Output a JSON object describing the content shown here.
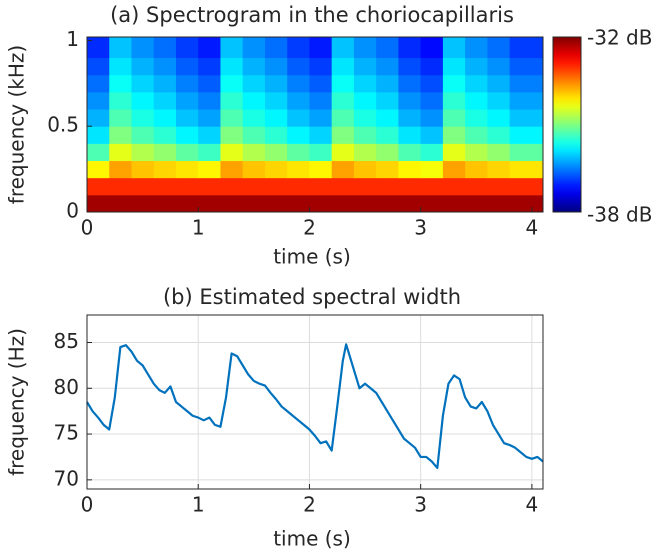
{
  "chart_data": [
    {
      "type": "heatmap",
      "title": "(a) Spectrogram in the choriocapillaris",
      "xlabel": "time (s)",
      "ylabel": "frequency (kHz)",
      "colormap": "jet",
      "x": [
        0.1,
        0.3,
        0.5,
        0.7,
        0.9,
        1.1,
        1.3,
        1.5,
        1.7,
        1.9,
        2.1,
        2.3,
        2.5,
        2.7,
        2.9,
        3.1,
        3.3,
        3.5,
        3.7,
        3.9
      ],
      "y": [
        0.05,
        0.15,
        0.25,
        0.35,
        0.45,
        0.55,
        0.65,
        0.75,
        0.85,
        0.95
      ],
      "z": [
        [
          -32.2,
          -32.2,
          -32.2,
          -32.2,
          -32.2,
          -32.2,
          -32.2,
          -32.2,
          -32.2,
          -32.2,
          -32.2,
          -32.2,
          -32.2,
          -32.2,
          -32.2,
          -32.2,
          -32.2,
          -32.2,
          -32.2,
          -32.2
        ],
        [
          -33,
          -33,
          -33,
          -33,
          -33,
          -33,
          -33,
          -33,
          -33,
          -33,
          -33,
          -33,
          -33,
          -33,
          -33,
          -33,
          -33,
          -33,
          -33,
          -33
        ],
        [
          -34.2,
          -33.7,
          -33.9,
          -34,
          -34.1,
          -34.2,
          -33.7,
          -33.9,
          -34,
          -34.1,
          -34.2,
          -33.7,
          -33.9,
          -34,
          -34.2,
          -34.3,
          -33.7,
          -33.9,
          -34,
          -34.1
        ],
        [
          -35.3,
          -34.4,
          -34.7,
          -34.9,
          -35.2,
          -35.4,
          -34.4,
          -34.7,
          -34.9,
          -35.2,
          -35.4,
          -34.4,
          -34.7,
          -34.9,
          -35.3,
          -35.5,
          -34.4,
          -34.7,
          -34.9,
          -35.2
        ],
        [
          -35.9,
          -35,
          -35.3,
          -35.5,
          -35.8,
          -36,
          -35,
          -35.3,
          -35.5,
          -35.8,
          -36,
          -35,
          -35.3,
          -35.5,
          -35.9,
          -36.1,
          -35,
          -35.3,
          -35.5,
          -35.8
        ],
        [
          -36.2,
          -35.3,
          -35.6,
          -35.8,
          -36.1,
          -36.3,
          -35.3,
          -35.6,
          -35.8,
          -36.1,
          -36.3,
          -35.3,
          -35.6,
          -35.8,
          -36.2,
          -36.4,
          -35.3,
          -35.6,
          -35.8,
          -36.1
        ],
        [
          -36.4,
          -35.5,
          -35.8,
          -36,
          -36.3,
          -36.5,
          -35.5,
          -35.8,
          -36,
          -36.3,
          -36.5,
          -35.5,
          -35.8,
          -36,
          -36.4,
          -36.6,
          -35.5,
          -35.8,
          -36,
          -36.3
        ],
        [
          -36.6,
          -35.7,
          -36,
          -36.2,
          -36.5,
          -36.7,
          -35.7,
          -36,
          -36.2,
          -36.5,
          -36.7,
          -35.7,
          -36,
          -36.2,
          -36.6,
          -36.8,
          -35.7,
          -36,
          -36.2,
          -36.5
        ],
        [
          -36.8,
          -35.9,
          -36.2,
          -36.4,
          -36.7,
          -36.9,
          -35.9,
          -36.2,
          -36.4,
          -36.7,
          -36.9,
          -35.9,
          -36.2,
          -36.4,
          -36.8,
          -37,
          -35.9,
          -36.2,
          -36.4,
          -36.7
        ],
        [
          -37,
          -36.1,
          -36.4,
          -36.6,
          -36.9,
          -37.1,
          -36.1,
          -36.4,
          -36.6,
          -36.9,
          -37.1,
          -36.1,
          -36.4,
          -36.6,
          -37,
          -37.2,
          -36.1,
          -36.4,
          -36.6,
          -36.9
        ]
      ],
      "xlim": [
        0,
        4.1
      ],
      "ylim": [
        0,
        1.02
      ],
      "xticks": [
        0,
        1,
        2,
        3,
        4
      ],
      "yticks": [
        0,
        0.5,
        1
      ],
      "zlim": [
        -38,
        -32
      ],
      "zticks": [
        {
          "value": -32,
          "label": "-32 dB"
        },
        {
          "value": -38,
          "label": "-38 dB"
        }
      ]
    },
    {
      "type": "line",
      "title": "(b) Estimated spectral width",
      "xlabel": "time (s)",
      "ylabel": "frequency (Hz)",
      "color": "#0072bd",
      "grid": true,
      "x": [
        0,
        0.05,
        0.1,
        0.15,
        0.2,
        0.25,
        0.3,
        0.35,
        0.4,
        0.45,
        0.5,
        0.55,
        0.6,
        0.65,
        0.7,
        0.75,
        0.8,
        0.85,
        0.9,
        0.95,
        1.0,
        1.05,
        1.1,
        1.15,
        1.2,
        1.25,
        1.3,
        1.35,
        1.4,
        1.45,
        1.5,
        1.55,
        1.6,
        1.65,
        1.7,
        1.75,
        1.8,
        1.85,
        1.9,
        1.95,
        2.0,
        2.05,
        2.1,
        2.15,
        2.2,
        2.25,
        2.3,
        2.33,
        2.4,
        2.45,
        2.5,
        2.55,
        2.6,
        2.65,
        2.7,
        2.75,
        2.8,
        2.85,
        2.9,
        2.95,
        3.0,
        3.05,
        3.1,
        3.15,
        3.2,
        3.25,
        3.3,
        3.35,
        3.4,
        3.45,
        3.5,
        3.55,
        3.6,
        3.65,
        3.7,
        3.75,
        3.8,
        3.85,
        3.9,
        3.95,
        4.0,
        4.05,
        4.1
      ],
      "values": [
        78.5,
        77.5,
        76.8,
        76,
        75.5,
        79,
        84.5,
        84.7,
        84,
        83,
        82.5,
        81.5,
        80.5,
        79.8,
        79.5,
        80.2,
        78.5,
        78,
        77.5,
        77,
        76.8,
        76.5,
        76.8,
        76,
        75.8,
        79,
        83.8,
        83.5,
        82.5,
        81.5,
        80.8,
        80.5,
        80.3,
        79.5,
        78.8,
        78,
        77.5,
        77,
        76.5,
        76,
        75.5,
        74.8,
        74,
        74.2,
        73.2,
        78,
        83,
        84.8,
        82,
        80,
        80.5,
        80,
        79.5,
        78.5,
        77.5,
        76.5,
        75.5,
        74.5,
        74,
        73.5,
        72.5,
        72.5,
        72,
        71.3,
        77,
        80.5,
        81.4,
        81,
        79,
        78,
        77.8,
        78.5,
        77.5,
        76,
        75,
        74,
        73.8,
        73.5,
        73,
        72.5,
        72.3,
        72.5,
        72
      ],
      "xlim": [
        0,
        4.1
      ],
      "ylim": [
        69,
        88
      ],
      "xticks": [
        0,
        1,
        2,
        3,
        4
      ],
      "yticks": [
        70,
        75,
        80,
        85
      ]
    }
  ]
}
